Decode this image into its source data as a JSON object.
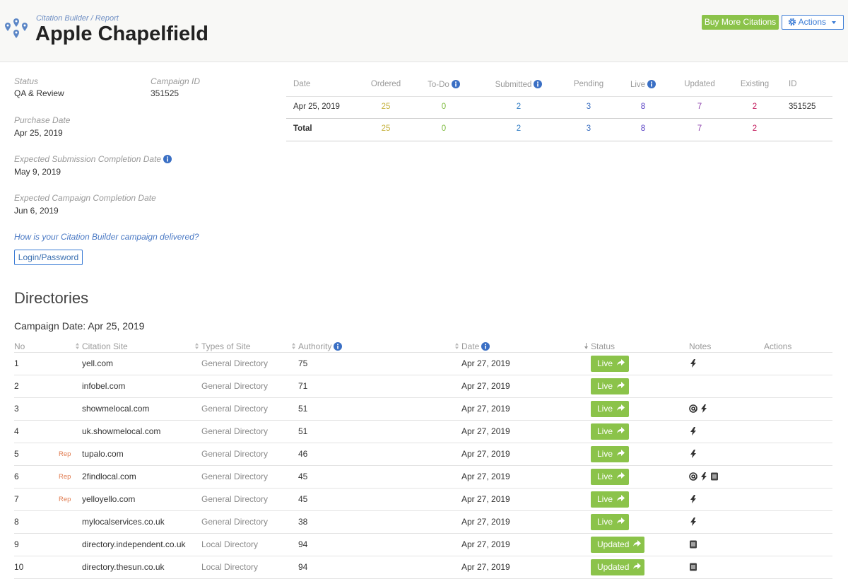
{
  "header": {
    "breadcrumb": {
      "parent": "Citation Builder",
      "separator": "/",
      "current": "Report"
    },
    "title": "Apple Chapelfield",
    "buttons": {
      "buy": "Buy More Citations",
      "actions": "Actions"
    }
  },
  "info": {
    "status": {
      "label": "Status",
      "value": "QA & Review"
    },
    "campaign_id": {
      "label": "Campaign ID",
      "value": "351525"
    },
    "purchase_date": {
      "label": "Purchase Date",
      "value": "Apr 25, 2019"
    },
    "submission_date": {
      "label": "Expected Submission Completion Date",
      "value": "May 9, 2019"
    },
    "completion_date": {
      "label": "Expected Campaign Completion Date",
      "value": "Jun 6, 2019"
    },
    "link": "How is your Citation Builder campaign delivered?",
    "login_button": "Login/Password"
  },
  "summary": {
    "headers": [
      "Date",
      "Ordered",
      "To-Do",
      "Submitted",
      "Pending",
      "Live",
      "Updated",
      "Existing",
      "ID"
    ],
    "rows": [
      [
        "Apr 25, 2019",
        25,
        0,
        2,
        3,
        8,
        7,
        2,
        351525
      ],
      [
        "Total",
        25,
        0,
        2,
        3,
        8,
        7,
        2
      ]
    ]
  },
  "directories": {
    "title": "Directories",
    "campaign_date": "Campaign Date: Apr 25, 2019",
    "headers": [
      "No",
      "Citation Site",
      "Types of Site",
      "Authority",
      "Date",
      "Status",
      "Notes",
      "Actions"
    ],
    "rows": [
      {
        "no": 1,
        "site": "yell.com",
        "type": "General Directory",
        "authority": 75,
        "date": "Apr 27, 2019",
        "status": "Live"
      },
      {
        "no": 2,
        "site": "infobel.com",
        "type": "General Directory",
        "authority": 71,
        "date": "Apr 27, 2019",
        "status": "Live"
      },
      {
        "no": 3,
        "site": "showmelocal.com",
        "type": "General Directory",
        "authority": 51,
        "date": "Apr 27, 2019",
        "status": "Live"
      },
      {
        "no": 4,
        "site": "uk.showmelocal.com",
        "type": "General Directory",
        "authority": 51,
        "date": "Apr 27, 2019",
        "status": "Live"
      },
      {
        "no": 5,
        "rep": "Rep",
        "site": "tupalo.com",
        "type": "General Directory",
        "authority": 46,
        "date": "Apr 27, 2019",
        "status": "Live"
      },
      {
        "no": 6,
        "rep": "Rep",
        "site": "2findlocal.com",
        "type": "General Directory",
        "authority": 45,
        "date": "Apr 27, 2019",
        "status": "Live"
      },
      {
        "no": 7,
        "rep": "Rep",
        "site": "yelloyello.com",
        "type": "General Directory",
        "authority": 45,
        "date": "Apr 27, 2019",
        "status": "Live"
      },
      {
        "no": 8,
        "site": "mylocalservices.co.uk",
        "type": "General Directory",
        "authority": 38,
        "date": "Apr 27, 2019",
        "status": "Live"
      },
      {
        "no": 9,
        "site": "directory.independent.co.uk",
        "type": "Local Directory",
        "authority": 94,
        "date": "Apr 27, 2019",
        "status": "Updated"
      },
      {
        "no": 10,
        "site": "directory.thesun.co.uk",
        "type": "Local Directory",
        "authority": 94,
        "date": "Apr 27, 2019",
        "status": "Updated"
      }
    ]
  }
}
